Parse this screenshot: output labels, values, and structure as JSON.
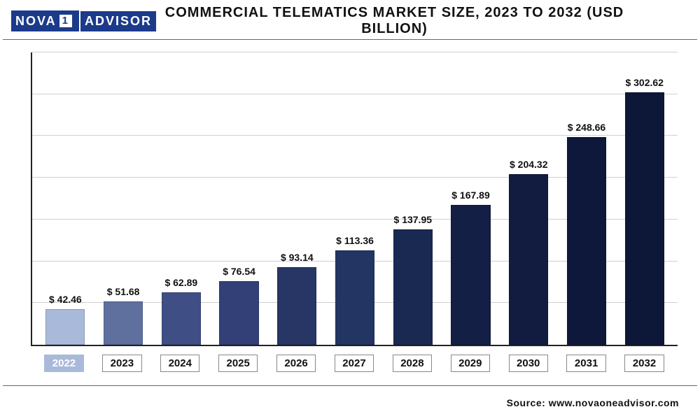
{
  "logo": {
    "part1": "NOVA",
    "part2": "1",
    "part3": "ADVISOR",
    "bg_color": "#1b3a8a",
    "text_color": "#ffffff"
  },
  "chart": {
    "title": "COMMERCIAL TELEMATICS MARKET SIZE, 2023 TO 2032 (USD BILLION)",
    "title_fontsize": 20,
    "type": "bar",
    "categories": [
      "2022",
      "2023",
      "2024",
      "2025",
      "2026",
      "2027",
      "2028",
      "2029",
      "2030",
      "2031",
      "2032"
    ],
    "values": [
      42.46,
      51.68,
      62.89,
      76.54,
      93.14,
      113.36,
      137.95,
      167.89,
      204.32,
      248.66,
      302.62
    ],
    "value_labels": [
      "$ 42.46",
      "$ 51.68",
      "$ 62.89",
      "$ 76.54",
      "$ 93.14",
      "$ 113.36",
      "$ 137.95",
      "$ 167.89",
      "$ 204.32",
      "$ 248.66",
      "$ 302.62"
    ],
    "bar_colors": [
      "#a9b9d9",
      "#5f6f9e",
      "#3f4f86",
      "#334077",
      "#273664",
      "#233562",
      "#1a2951",
      "#131f44",
      "#111c40",
      "#0e183a",
      "#0d1738"
    ],
    "grid_color": "#d0d0d0",
    "axis_color": "#222222",
    "background_color": "#ffffff",
    "ylim": [
      0,
      350
    ],
    "grid_lines": 7,
    "bar_width": 0.68,
    "value_label_fontsize": 14,
    "category_fontsize": 15,
    "x_label_bg_first": "#a9b9d9",
    "x_label_bg_rest": "#ffffff",
    "x_label_color_first": "#ffffff",
    "x_label_color_rest": "#111111"
  },
  "source": {
    "label": "Source:",
    "value": "www.novaoneadvisor.com"
  }
}
